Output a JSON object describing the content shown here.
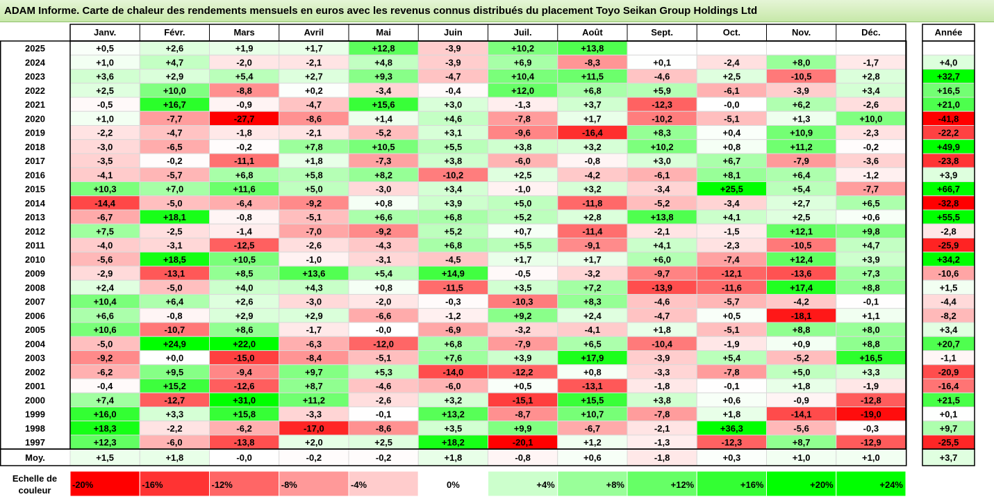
{
  "title": "ADAM Informe. Carte de chaleur des rendements mensuels en euros avec les revenus connus distribués du placement Toyo Seikan Group Holdings Ltd",
  "colors": {
    "negative": "#ff0000",
    "positive": "#00ff00",
    "neutral": "#ffffff",
    "title_bg": "#d2ecbc"
  },
  "legend": {
    "label_line1": "Echelle de",
    "label_line2": "couleur",
    "stops": [
      {
        "label": "-20%",
        "value": -20
      },
      {
        "label": "-16%",
        "value": -16
      },
      {
        "label": "-12%",
        "value": -12
      },
      {
        "label": "-8%",
        "value": -8
      },
      {
        "label": "-4%",
        "value": -4
      },
      {
        "label": "0%",
        "value": 0
      },
      {
        "label": "+4%",
        "value": 4
      },
      {
        "label": "+8%",
        "value": 8
      },
      {
        "label": "+12%",
        "value": 12
      },
      {
        "label": "+16%",
        "value": 16
      },
      {
        "label": "+20%",
        "value": 20
      },
      {
        "label": "+24%",
        "value": 24
      }
    ]
  },
  "chart_data": {
    "type": "heatmap",
    "title": "ADAM Informe. Carte de chaleur des rendements mensuels en euros avec les revenus connus distribués du placement Toyo Seikan Group Holdings Ltd",
    "months": [
      "Janv.",
      "Févr.",
      "Mars",
      "Avril",
      "Mai",
      "Juin",
      "Juil.",
      "Août",
      "Sept.",
      "Oct.",
      "Nov.",
      "Déc."
    ],
    "year_header": "Année",
    "avg_label": "Moy.",
    "rows": [
      {
        "year": "2025",
        "values": [
          "+0,5",
          "+2,6",
          "+1,9",
          "+1,7",
          "+12,8",
          "-3,9",
          "+10,2",
          "+13,8",
          "",
          "",
          "",
          ""
        ],
        "annual": ""
      },
      {
        "year": "2024",
        "values": [
          "+1,0",
          "+4,7",
          "-2,0",
          "-2,1",
          "+4,8",
          "-3,9",
          "+6,9",
          "-8,3",
          "+0,1",
          "-2,4",
          "+8,0",
          "-1,7"
        ],
        "annual": "+4,0"
      },
      {
        "year": "2023",
        "values": [
          "+3,6",
          "+2,9",
          "+5,4",
          "+2,7",
          "+9,3",
          "-4,7",
          "+10,4",
          "+11,5",
          "-4,6",
          "+2,5",
          "-10,5",
          "+2,8"
        ],
        "annual": "+32,7"
      },
      {
        "year": "2022",
        "values": [
          "+2,5",
          "+10,0",
          "-8,8",
          "+0,2",
          "-3,4",
          "-0,4",
          "+12,0",
          "+6,8",
          "+5,9",
          "-6,1",
          "-3,9",
          "+3,4"
        ],
        "annual": "+16,5"
      },
      {
        "year": "2021",
        "values": [
          "-0,5",
          "+16,7",
          "-0,9",
          "-4,7",
          "+15,6",
          "+3,0",
          "-1,3",
          "+3,7",
          "-12,3",
          "-0,0",
          "+6,2",
          "-2,6"
        ],
        "annual": "+21,0"
      },
      {
        "year": "2020",
        "values": [
          "+1,0",
          "-7,7",
          "-27,7",
          "-8,6",
          "+1,4",
          "+4,6",
          "-7,8",
          "+1,7",
          "-10,2",
          "-5,1",
          "+1,3",
          "+10,0"
        ],
        "annual": "-41,8"
      },
      {
        "year": "2019",
        "values": [
          "-2,2",
          "-4,7",
          "-1,8",
          "-2,1",
          "-5,2",
          "+3,1",
          "-9,6",
          "-16,4",
          "+8,3",
          "+0,4",
          "+10,9",
          "-2,3"
        ],
        "annual": "-22,2"
      },
      {
        "year": "2018",
        "values": [
          "-3,0",
          "-6,5",
          "-0,2",
          "+7,8",
          "+10,5",
          "+5,5",
          "+3,8",
          "+3,2",
          "+10,2",
          "+0,8",
          "+11,2",
          "-0,2"
        ],
        "annual": "+49,9"
      },
      {
        "year": "2017",
        "values": [
          "-3,5",
          "-0,2",
          "-11,1",
          "+1,8",
          "-7,3",
          "+3,8",
          "-6,0",
          "-0,8",
          "+3,0",
          "+6,7",
          "-7,9",
          "-3,6"
        ],
        "annual": "-23,8"
      },
      {
        "year": "2016",
        "values": [
          "-4,1",
          "-5,7",
          "+6,8",
          "+5,8",
          "+8,2",
          "-10,2",
          "+2,5",
          "-4,2",
          "-6,1",
          "+8,1",
          "+6,4",
          "-1,2"
        ],
        "annual": "+3,9"
      },
      {
        "year": "2015",
        "values": [
          "+10,3",
          "+7,0",
          "+11,6",
          "+5,0",
          "-3,0",
          "+3,4",
          "-1,0",
          "+3,2",
          "-3,4",
          "+25,5",
          "+5,4",
          "-7,7"
        ],
        "annual": "+66,7"
      },
      {
        "year": "2014",
        "values": [
          "-14,4",
          "-5,0",
          "-6,4",
          "-9,2",
          "+0,8",
          "+3,9",
          "+5,0",
          "-11,8",
          "-5,2",
          "-3,4",
          "+2,7",
          "+6,5"
        ],
        "annual": "-32,8"
      },
      {
        "year": "2013",
        "values": [
          "-6,7",
          "+18,1",
          "-0,8",
          "-5,1",
          "+6,6",
          "+6,8",
          "+5,2",
          "+2,8",
          "+13,8",
          "+4,1",
          "+2,5",
          "+0,6"
        ],
        "annual": "+55,5"
      },
      {
        "year": "2012",
        "values": [
          "+7,5",
          "-2,5",
          "-1,4",
          "-7,0",
          "-9,2",
          "+5,2",
          "+0,7",
          "-11,4",
          "-2,1",
          "-1,5",
          "+12,1",
          "+9,8"
        ],
        "annual": "-2,8"
      },
      {
        "year": "2011",
        "values": [
          "-4,0",
          "-3,1",
          "-12,5",
          "-2,6",
          "-4,3",
          "+6,8",
          "+5,5",
          "-9,1",
          "+4,1",
          "-2,3",
          "-10,5",
          "+4,7"
        ],
        "annual": "-25,9"
      },
      {
        "year": "2010",
        "values": [
          "-5,6",
          "+18,5",
          "+10,5",
          "-1,0",
          "-3,1",
          "-4,5",
          "+1,7",
          "+1,7",
          "+6,0",
          "-7,4",
          "+12,4",
          "+3,9"
        ],
        "annual": "+34,2"
      },
      {
        "year": "2009",
        "values": [
          "-2,9",
          "-13,1",
          "+8,5",
          "+13,6",
          "+5,4",
          "+14,9",
          "-0,5",
          "-3,2",
          "-9,7",
          "-12,1",
          "-13,6",
          "+7,3"
        ],
        "annual": "-10,6"
      },
      {
        "year": "2008",
        "values": [
          "+2,4",
          "-5,0",
          "+4,0",
          "+4,3",
          "+0,8",
          "-11,5",
          "+3,5",
          "+7,2",
          "-13,9",
          "-11,6",
          "+17,4",
          "+8,8"
        ],
        "annual": "+1,5"
      },
      {
        "year": "2007",
        "values": [
          "+10,4",
          "+6,4",
          "+2,6",
          "-3,0",
          "-2,0",
          "-0,3",
          "-10,3",
          "+8,3",
          "-4,6",
          "-5,7",
          "-4,2",
          "-0,1"
        ],
        "annual": "-4,4"
      },
      {
        "year": "2006",
        "values": [
          "+6,6",
          "-0,8",
          "+2,9",
          "+2,9",
          "-6,6",
          "-1,2",
          "+9,2",
          "+2,4",
          "-4,7",
          "+0,5",
          "-18,1",
          "+1,1"
        ],
        "annual": "-8,2"
      },
      {
        "year": "2005",
        "values": [
          "+10,6",
          "-10,7",
          "+8,6",
          "-1,7",
          "-0,0",
          "-6,9",
          "-3,2",
          "-4,1",
          "+1,8",
          "-5,1",
          "+8,8",
          "+8,0"
        ],
        "annual": "+3,4"
      },
      {
        "year": "2004",
        "values": [
          "-5,0",
          "+24,9",
          "+22,0",
          "-6,3",
          "-12,0",
          "+6,8",
          "-7,9",
          "+6,5",
          "-10,4",
          "-1,9",
          "+0,9",
          "+8,8"
        ],
        "annual": "+20,7"
      },
      {
        "year": "2003",
        "values": [
          "-9,2",
          "+0,0",
          "-15,0",
          "-8,4",
          "-5,1",
          "+7,6",
          "+3,9",
          "+17,9",
          "-3,9",
          "+5,4",
          "-5,2",
          "+16,5"
        ],
        "annual": "-1,1"
      },
      {
        "year": "2002",
        "values": [
          "-6,2",
          "+9,5",
          "-9,4",
          "+9,7",
          "+5,3",
          "-14,0",
          "-12,2",
          "+0,8",
          "-3,3",
          "-7,8",
          "+5,0",
          "+3,3"
        ],
        "annual": "-20,9"
      },
      {
        "year": "2001",
        "values": [
          "-0,4",
          "+15,2",
          "-12,6",
          "+8,7",
          "-4,6",
          "-6,0",
          "+0,5",
          "-13,1",
          "-1,8",
          "-0,1",
          "+1,8",
          "-1,9"
        ],
        "annual": "-16,4"
      },
      {
        "year": "2000",
        "values": [
          "+7,4",
          "-12,7",
          "+31,0",
          "+11,2",
          "-2,6",
          "+3,2",
          "-15,1",
          "+15,5",
          "+3,8",
          "+0,6",
          "-0,9",
          "-12,8"
        ],
        "annual": "+21,5"
      },
      {
        "year": "1999",
        "values": [
          "+16,0",
          "+3,3",
          "+15,8",
          "-3,3",
          "-0,1",
          "+13,2",
          "-8,7",
          "+10,7",
          "-7,8",
          "+1,8",
          "-14,1",
          "-19,0"
        ],
        "annual": "+0,1"
      },
      {
        "year": "1998",
        "values": [
          "+18,3",
          "-2,2",
          "-6,2",
          "-17,0",
          "-8,6",
          "+3,5",
          "+9,9",
          "-6,7",
          "-2,1",
          "+36,3",
          "-5,6",
          "-0,3"
        ],
        "annual": "+9,7"
      },
      {
        "year": "1997",
        "values": [
          "+12,3",
          "-6,0",
          "-13,8",
          "+2,0",
          "+2,5",
          "+18,2",
          "-20,1",
          "+1,2",
          "-1,3",
          "-12,3",
          "+8,7",
          "-12,9"
        ],
        "annual": "-25,5"
      }
    ],
    "average": {
      "values": [
        "+1,5",
        "+1,8",
        "-0,0",
        "-0,2",
        "-0,2",
        "+1,8",
        "-0,8",
        "+0,6",
        "-1,8",
        "+0,3",
        "+1,0",
        "+1,0"
      ],
      "annual": "+3,7"
    }
  }
}
